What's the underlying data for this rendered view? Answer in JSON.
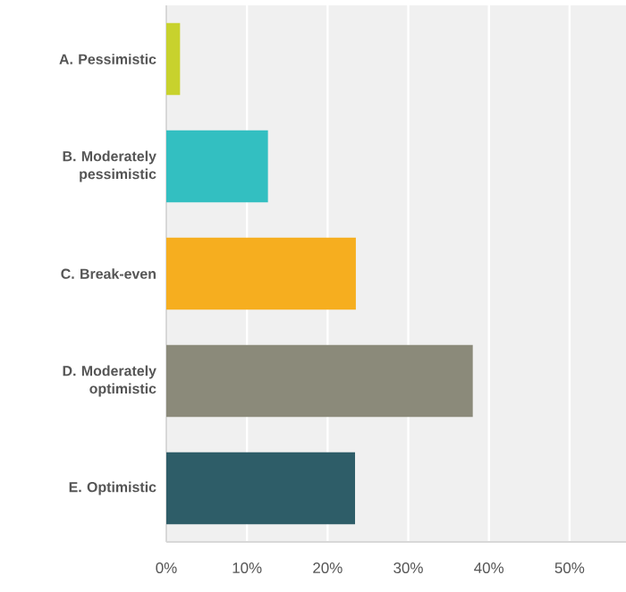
{
  "chart_data": {
    "type": "bar",
    "orientation": "horizontal",
    "categories": [
      "A. Pessimistic",
      "B. Moderately pessimistic",
      "C. Break-even",
      "D. Moderately optimistic",
      "E. Optimistic"
    ],
    "values": [
      1.7,
      12.6,
      23.5,
      38.0,
      23.4
    ],
    "colors": [
      "#c8d22d",
      "#33bfc1",
      "#f6ae1f",
      "#8b8a7a",
      "#2e5d68"
    ],
    "xlim": [
      0,
      57
    ],
    "xticks": [
      {
        "value": 0,
        "label": "0%"
      },
      {
        "value": 10,
        "label": "10%"
      },
      {
        "value": 20,
        "label": "20%"
      },
      {
        "value": 30,
        "label": "30%"
      },
      {
        "value": 40,
        "label": "40%"
      },
      {
        "value": 50,
        "label": "50%"
      }
    ],
    "grid": "x"
  }
}
